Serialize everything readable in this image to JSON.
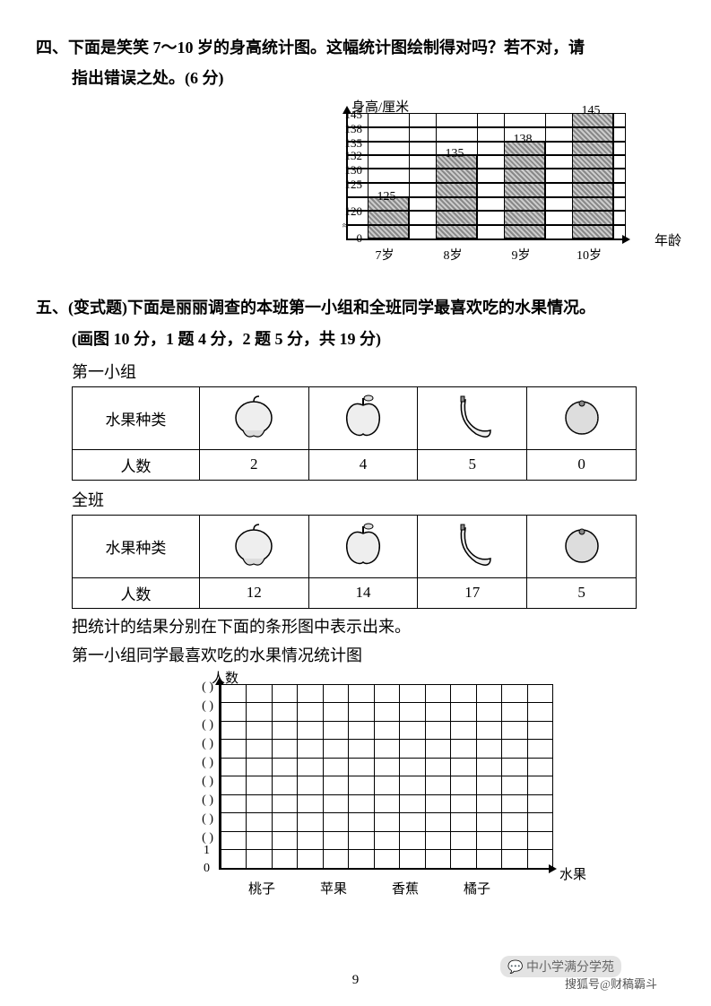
{
  "q4": {
    "title_line1": "四、下面是笑笑 7～10 岁的身高统计图。这幅统计图绘制得对吗？若不对，请",
    "title_line2": "指出错误之处。(6 分)",
    "y_axis_label": "身高/厘米",
    "x_axis_label": "年龄",
    "y_ticks": [
      "145",
      "138",
      "135",
      "132",
      "130",
      "125",
      "120",
      "0"
    ],
    "x_ticks": [
      "7岁",
      "8岁",
      "9岁",
      "10岁"
    ],
    "bar_values": [
      "125",
      "135",
      "138",
      "145"
    ],
    "bar_colors": "#bbb",
    "grid_color": "#000",
    "background_color": "#ffffff"
  },
  "q5": {
    "title_line1": "五、(变式题)下面是丽丽调查的本班第一小组和全班同学最喜欢吃的水果情况。",
    "title_line2": "(画图 10 分，1 题 4 分，2 题 5 分，共 19 分)",
    "group1_label": "第一小组",
    "class_label": "全班",
    "row_header1": "水果种类",
    "row_header2": "人数",
    "fruits": [
      "桃子",
      "苹果",
      "香蕉",
      "橘子"
    ],
    "group1_counts": [
      "2",
      "4",
      "5",
      "0"
    ],
    "class_counts": [
      "12",
      "14",
      "17",
      "5"
    ],
    "instruction": "把统计的结果分别在下面的条形图中表示出来。",
    "chart2_title": "第一小组同学最喜欢吃的水果情况统计图",
    "chart2_ylabel": "人数",
    "chart2_xlabel": "水果",
    "chart2_yticks_blank": "(     )",
    "chart2_y_bottom": [
      "1",
      "0"
    ],
    "chart2_xticks": [
      "桃子",
      "苹果",
      "香蕉",
      "橘子"
    ]
  },
  "page_number": "9",
  "watermark1": "中小学满分学苑",
  "watermark2": "搜狐号@财稿霸斗"
}
